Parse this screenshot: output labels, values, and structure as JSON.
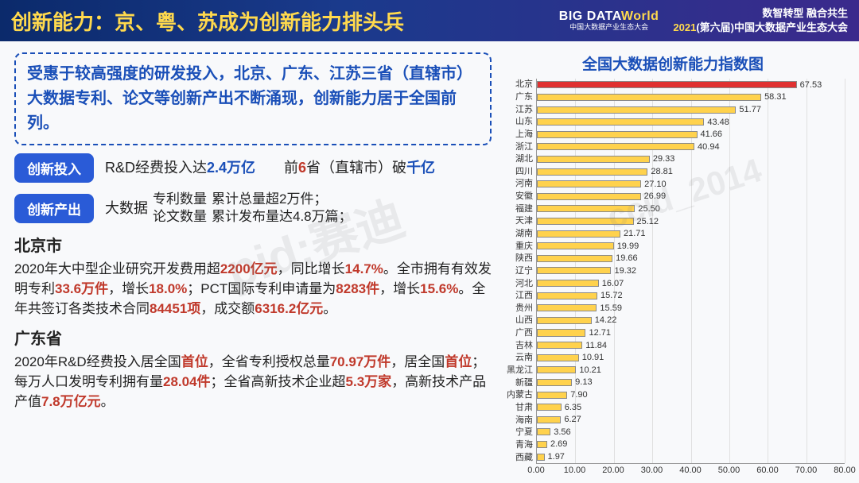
{
  "header": {
    "title": "创新能力：京、粤、苏成为创新能力排头兵",
    "logo_main": "BIG DATA",
    "logo_world": "World",
    "logo_sub": "中国大数据产业生态大会",
    "right_line1": "数智转型  融合共生",
    "right_year": "2021",
    "right_rest": "(第六届)中国大数据产业生态大会"
  },
  "summary": "受惠于较高强度的研发投入，北京、广东、江苏三省（直辖市）大数据专利、论文等创新产出不断涌现，创新能力居于全国前列。",
  "pill1": {
    "label": "创新投入",
    "t1a": "R&D经费投入达",
    "t1b": "2.4万亿",
    "gap": "　　",
    "t2a": "前",
    "t2b": "6",
    "t2c": "省（直辖市）破",
    "t2d": "千亿"
  },
  "pill2": {
    "label": "创新产出",
    "lead": "大数据",
    "subA": "专利数量",
    "subB": "论文数量",
    "rA": "累计总量超2万件；",
    "rB": "累计发布量达4.8万篇；"
  },
  "beijing": {
    "title": "北京市",
    "l1a": "2020年大中型企业研究开发费用超",
    "l1b": "2200亿元",
    "l1c": "，同比增长",
    "l1d": "14.7%",
    "l1e": "。全市拥有有效发明专利",
    "l1f": "33.6万件",
    "l1g": "，增长",
    "l1h": "18.0%",
    "l1i": "；PCT国际专利申请量为",
    "l1j": "8283件",
    "l1k": "，增长",
    "l1l": "15.6%",
    "l1m": "。全年共签订各类技术合同",
    "l1n": "84451项",
    "l1o": "，成交额",
    "l1p": "6316.2亿元",
    "l1q": "。"
  },
  "guangdong": {
    "title": "广东省",
    "l1a": "2020年R&D经费投入居全国",
    "l1b": "首位",
    "l1c": "，全省专利授权总量",
    "l1d": "70.97万件",
    "l1e": "，居全国",
    "l1f": "首位",
    "l1g": "；每万人口发明专利拥有量",
    "l1h": "28.04件",
    "l1i": "；全省高新技术企业超",
    "l1j": "5.3万家",
    "l1k": "，高新技术产品产值",
    "l1l": "7.8万亿元",
    "l1m": "。"
  },
  "chart": {
    "title": "全国大数据创新能力指数图",
    "xmax": 80,
    "xticks": [
      0,
      10,
      20,
      30,
      40,
      50,
      60,
      70,
      80
    ],
    "xtick_labels": [
      "0.00",
      "10.00",
      "20.00",
      "30.00",
      "40.00",
      "50.00",
      "60.00",
      "70.00",
      "80.00"
    ],
    "bar_border": "#8a8a8a",
    "default_color": "#ffd24d",
    "rows": [
      {
        "label": "北京",
        "value": 67.53,
        "color": "#e03131"
      },
      {
        "label": "广东",
        "value": 58.31,
        "color": "#ffd24d"
      },
      {
        "label": "江苏",
        "value": 51.77,
        "color": "#ffd24d"
      },
      {
        "label": "山东",
        "value": 43.48,
        "color": "#ffd24d"
      },
      {
        "label": "上海",
        "value": 41.66,
        "color": "#ffd24d"
      },
      {
        "label": "浙江",
        "value": 40.94,
        "color": "#ffd24d"
      },
      {
        "label": "湖北",
        "value": 29.33,
        "color": "#ffd24d"
      },
      {
        "label": "四川",
        "value": 28.81,
        "color": "#ffd24d"
      },
      {
        "label": "河南",
        "value": 27.1,
        "color": "#ffd24d"
      },
      {
        "label": "安徽",
        "value": 26.99,
        "color": "#ffd24d"
      },
      {
        "label": "福建",
        "value": 25.5,
        "color": "#ffd24d"
      },
      {
        "label": "天津",
        "value": 25.12,
        "color": "#ffd24d"
      },
      {
        "label": "湖南",
        "value": 21.71,
        "color": "#ffd24d"
      },
      {
        "label": "重庆",
        "value": 19.99,
        "color": "#ffd24d"
      },
      {
        "label": "陕西",
        "value": 19.66,
        "color": "#ffd24d"
      },
      {
        "label": "辽宁",
        "value": 19.32,
        "color": "#ffd24d"
      },
      {
        "label": "河北",
        "value": 16.07,
        "color": "#ffd24d"
      },
      {
        "label": "江西",
        "value": 15.72,
        "color": "#ffd24d"
      },
      {
        "label": "贵州",
        "value": 15.59,
        "color": "#ffd24d"
      },
      {
        "label": "山西",
        "value": 14.22,
        "color": "#ffd24d"
      },
      {
        "label": "广西",
        "value": 12.71,
        "color": "#ffd24d"
      },
      {
        "label": "吉林",
        "value": 11.84,
        "color": "#ffd24d"
      },
      {
        "label": "云南",
        "value": 10.91,
        "color": "#ffd24d"
      },
      {
        "label": "黑龙江",
        "value": 10.21,
        "color": "#ffd24d"
      },
      {
        "label": "新疆",
        "value": 9.13,
        "color": "#ffd24d"
      },
      {
        "label": "内蒙古",
        "value": 7.9,
        "color": "#ffd24d"
      },
      {
        "label": "甘肃",
        "value": 6.35,
        "color": "#ffd24d"
      },
      {
        "label": "海南",
        "value": 6.27,
        "color": "#ffd24d"
      },
      {
        "label": "宁夏",
        "value": 3.56,
        "color": "#ffd24d"
      },
      {
        "label": "青海",
        "value": 2.69,
        "color": "#ffd24d"
      },
      {
        "label": "西藏",
        "value": 1.97,
        "color": "#ffd24d"
      }
    ]
  }
}
